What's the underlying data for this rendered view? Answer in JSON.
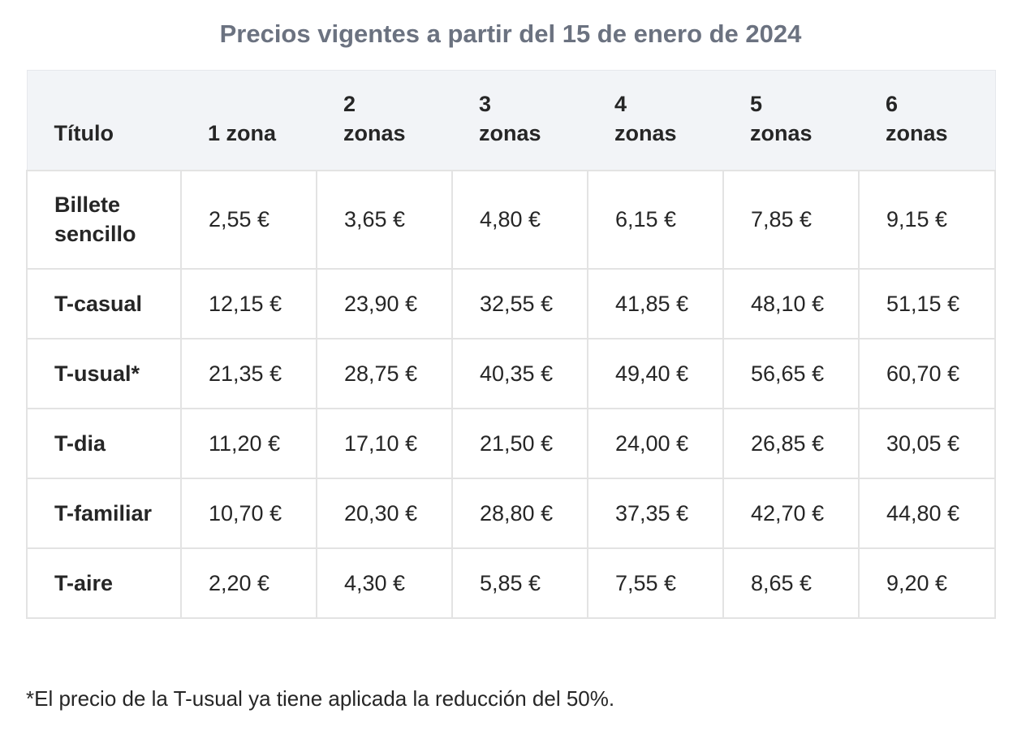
{
  "title": "Precios vigentes a partir del 15 de enero de 2024",
  "table": {
    "headers": [
      [
        "Título"
      ],
      [
        "1 zona"
      ],
      [
        "2",
        "zonas"
      ],
      [
        "3",
        "zonas"
      ],
      [
        "4",
        "zonas"
      ],
      [
        "5",
        "zonas"
      ],
      [
        "6",
        "zonas"
      ]
    ],
    "rows": [
      {
        "title_lines": [
          "Billete",
          "sencillo"
        ],
        "prices": [
          "2,55 €",
          "3,65 €",
          "4,80 €",
          "6,15 €",
          "7,85 €",
          "9,15 €"
        ]
      },
      {
        "title_lines": [
          "T-casual"
        ],
        "prices": [
          "12,15 €",
          "23,90 €",
          "32,55 €",
          "41,85 €",
          "48,10 €",
          "51,15 €"
        ]
      },
      {
        "title_lines": [
          "T-usual*"
        ],
        "prices": [
          "21,35 €",
          "28,75 €",
          "40,35 €",
          "49,40 €",
          "56,65 €",
          "60,70 €"
        ]
      },
      {
        "title_lines": [
          "T-dia"
        ],
        "prices": [
          "11,20 €",
          "17,10 €",
          "21,50 €",
          "24,00 €",
          "26,85 €",
          "30,05 €"
        ]
      },
      {
        "title_lines": [
          "T-familiar"
        ],
        "prices": [
          "10,70 €",
          "20,30 €",
          "28,80 €",
          "37,35 €",
          "42,70 €",
          "44,80 €"
        ]
      },
      {
        "title_lines": [
          "T-aire"
        ],
        "prices": [
          "2,20 €",
          "4,30 €",
          "5,85 €",
          "7,55 €",
          "8,65 €",
          "9,20 €"
        ]
      }
    ]
  },
  "footnote": "*El precio de la T-usual ya tiene aplicada la reducción del 50%.",
  "colors": {
    "title": "#6b7280",
    "header_background": "#f2f4f7",
    "border": "#e3e3e3",
    "text": "#262626"
  }
}
